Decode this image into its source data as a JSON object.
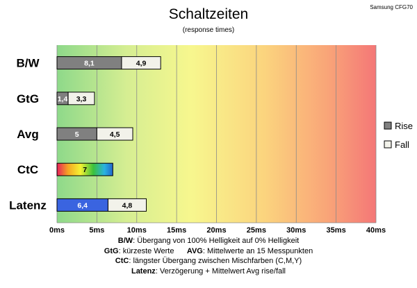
{
  "chart_data": {
    "type": "bar",
    "orientation": "horizontal",
    "stacked": true,
    "title": "Schaltzeiten",
    "subtitle": "(response times)",
    "source": "Samsung CFG70",
    "unit": "ms",
    "xlim": [
      0,
      40
    ],
    "xticks": [
      0,
      5,
      10,
      15,
      20,
      25,
      30,
      35,
      40
    ],
    "grid": true,
    "legend_position": "right",
    "background": "gradient green-yellow-orange-red",
    "categories": [
      "B/W",
      "GtG",
      "Avg",
      "CtC",
      "Latenz"
    ],
    "series": [
      {
        "name": "Rise",
        "values": [
          8.1,
          1.4,
          5,
          7,
          6.4
        ],
        "labels": [
          "8,1",
          "1,4",
          "5",
          "7",
          "6,4"
        ]
      },
      {
        "name": "Fall",
        "values": [
          4.9,
          3.3,
          4.5,
          null,
          4.8
        ],
        "labels": [
          "4,9",
          "3,3",
          "4,5",
          "",
          "4,8"
        ]
      }
    ],
    "special_fills": {
      "CtC": "rainbow",
      "Latenz": "#3a64e0"
    },
    "colors": {
      "rise": "#808080",
      "fall": "#f2f2ea"
    }
  },
  "notes": {
    "line1": {
      "key": "B/W",
      "text": ":  Übergang von 100% Helligkeit auf 0% Helligkeit"
    },
    "line2": {
      "key": "GtG",
      "text": ": kürzeste  Werte",
      "key2": "AVG",
      "text2": ": Mittelwerte  an 15 Messpunkten"
    },
    "line3": {
      "key": "CtC",
      "text": ": längster Übergang  zwischen Mischfarben (C,M,Y)"
    },
    "line4": {
      "key": "Latenz",
      "text": ": Verzögerung  + Mittelwert Avg rise/fall"
    }
  }
}
